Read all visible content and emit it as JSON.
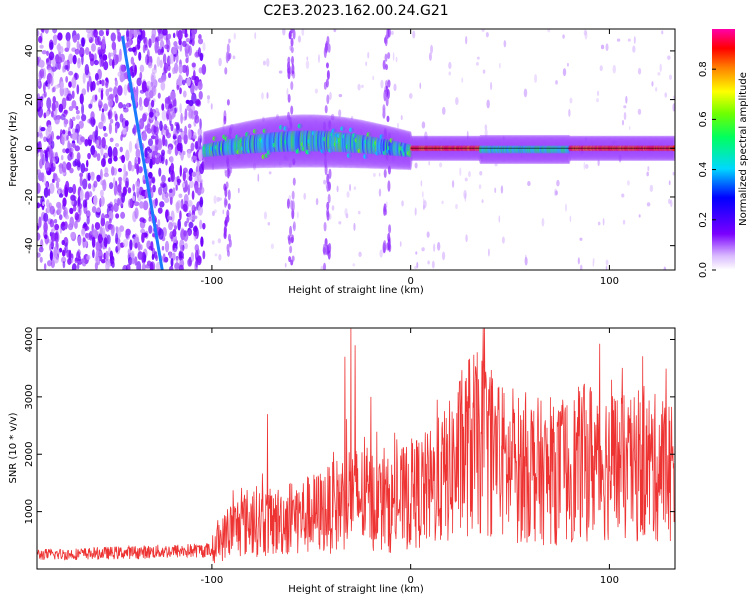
{
  "title": "C2E3.2023.162.00.24.G21",
  "chart_data": [
    {
      "type": "heatmap",
      "xlabel": "Height of straight line (km)",
      "ylabel": "Frequency (Hz)",
      "xlim": [
        -188,
        133
      ],
      "ylim": [
        -50,
        49
      ],
      "xticks": [
        -100,
        0,
        100
      ],
      "xtick_labels": [
        "-100",
        "0",
        "100"
      ],
      "yticks": [
        -40,
        -20,
        0,
        20,
        40
      ],
      "ytick_labels": [
        "-40",
        "-20",
        "0",
        "20",
        "40"
      ],
      "grid": false,
      "colorbar": {
        "label": "Normalized spectral amplitude",
        "range": [
          0.0,
          0.96
        ],
        "ticks": [
          0.0,
          0.2,
          0.4,
          0.6,
          0.8
        ],
        "tick_labels": [
          "0.0",
          "0.2",
          "0.4",
          "0.6",
          "0.8"
        ],
        "colormap": "hsv-rainbow (white → violet → blue → cyan → green → yellow → orange → red → magenta)"
      },
      "features": [
        {
          "name": "noise",
          "x_range": [
            -188,
            -104
          ],
          "freq_range": [
            -50,
            49
          ],
          "amplitude": 0.05
        },
        {
          "name": "diagonal line",
          "from": [
            -145,
            46
          ],
          "to": [
            -125,
            -50
          ],
          "amplitude": 0.25
        },
        {
          "name": "tone",
          "x_range": [
            -104,
            133
          ],
          "freq_range": [
            -5,
            10
          ],
          "amplitude_range": [
            0.3,
            0.95
          ]
        }
      ]
    },
    {
      "type": "line",
      "xlabel": "Height of straight line (km)",
      "ylabel": "SNR (10 * v/v)",
      "xlim": [
        -188,
        133
      ],
      "ylim": [
        0,
        4200
      ],
      "xticks": [
        -100,
        0,
        100
      ],
      "xtick_labels": [
        "-100",
        "0",
        "100"
      ],
      "yticks": [
        1000,
        2000,
        3000,
        4000
      ],
      "ytick_labels": [
        "1000",
        "2000",
        "3000",
        "4000"
      ],
      "grid": false,
      "color": "#ee3333",
      "envelope": [
        {
          "x": -188,
          "y": 250
        },
        {
          "x": -170,
          "y": 260
        },
        {
          "x": -150,
          "y": 280
        },
        {
          "x": -130,
          "y": 300
        },
        {
          "x": -110,
          "y": 320
        },
        {
          "x": -100,
          "y": 330
        },
        {
          "x": -90,
          "y": 700
        },
        {
          "x": -80,
          "y": 850
        },
        {
          "x": -70,
          "y": 800
        },
        {
          "x": -60,
          "y": 900
        },
        {
          "x": -50,
          "y": 950
        },
        {
          "x": -40,
          "y": 1050
        },
        {
          "x": -30,
          "y": 1300
        },
        {
          "x": -20,
          "y": 1200
        },
        {
          "x": -10,
          "y": 1100
        },
        {
          "x": 0,
          "y": 1300
        },
        {
          "x": 10,
          "y": 1400
        },
        {
          "x": 20,
          "y": 1700
        },
        {
          "x": 30,
          "y": 2200
        },
        {
          "x": 40,
          "y": 2100
        },
        {
          "x": 50,
          "y": 1700
        },
        {
          "x": 60,
          "y": 1800
        },
        {
          "x": 70,
          "y": 1600
        },
        {
          "x": 80,
          "y": 1750
        },
        {
          "x": 90,
          "y": 1900
        },
        {
          "x": 100,
          "y": 1850
        },
        {
          "x": 110,
          "y": 1700
        },
        {
          "x": 120,
          "y": 1800
        },
        {
          "x": 133,
          "y": 1750
        }
      ],
      "peaks": [
        {
          "x": -72,
          "y": 2700
        },
        {
          "x": -33,
          "y": 3700
        },
        {
          "x": -30,
          "y": 4200
        },
        {
          "x": -28,
          "y": 3900
        },
        {
          "x": -20,
          "y": 3000
        },
        {
          "x": 33,
          "y": 3350
        },
        {
          "x": 87,
          "y": 3150
        },
        {
          "x": 123,
          "y": 3050
        }
      ]
    }
  ]
}
